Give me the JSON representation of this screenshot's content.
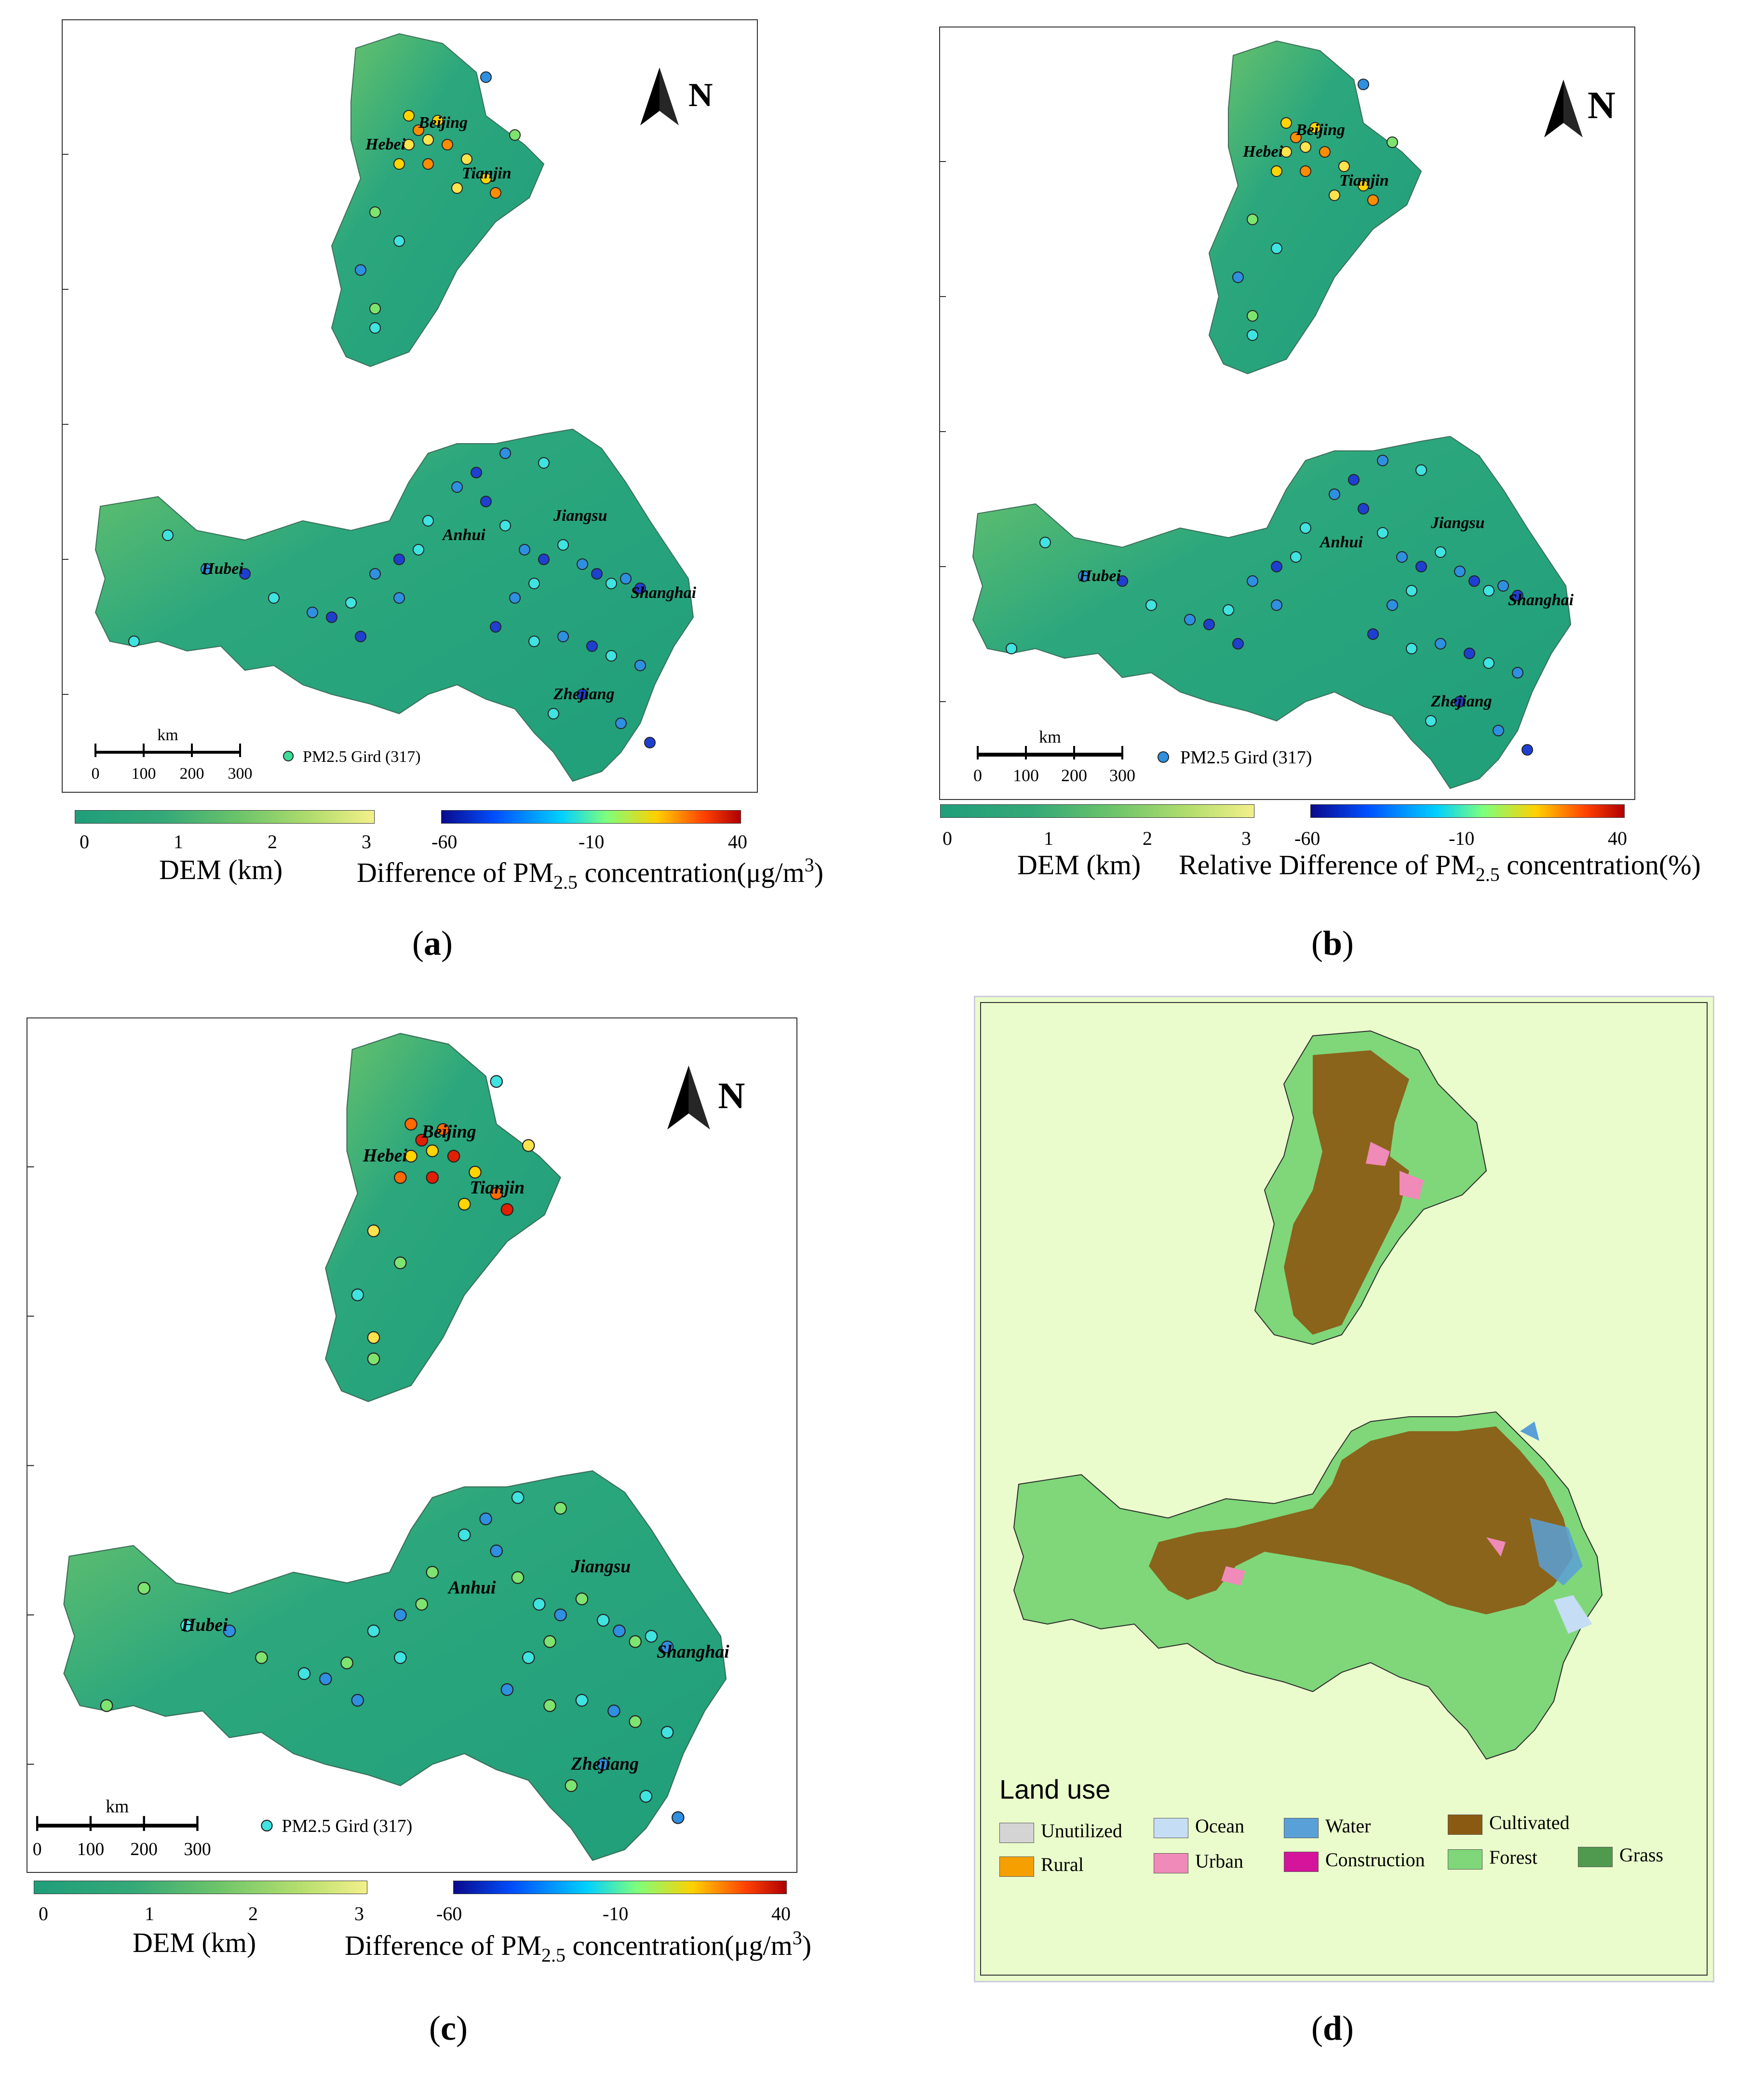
{
  "panels": [
    {
      "id": "a",
      "label": "a",
      "north": "N",
      "legend_text": "PM2.5 Gird (317)",
      "dot_color": "#3ddc97",
      "dem_title": "DEM (km)",
      "dem_ticks": [
        "0",
        "1",
        "2",
        "3"
      ],
      "diff_title_prefix": "Difference of PM",
      "diff_title_sub": "2.5",
      "diff_title_suffix": " concentration(μg/m",
      "diff_title_sup": "3",
      "diff_title_end": ")",
      "diff_ticks": [
        "-60",
        "-10",
        "40"
      ],
      "scale_unit": "km",
      "scale_ticks": [
        "0",
        "100",
        "200",
        "300"
      ],
      "regions": {
        "hebei": "Hebei",
        "beijing": "Beijing",
        "tianjin": "Tianjin",
        "jiangsu": "Jiangsu",
        "anhui": "Anhui",
        "hubei": "Hubei",
        "shanghai": "Shanghai",
        "zhejiang": "Zhejiang"
      }
    },
    {
      "id": "b",
      "label": "b",
      "north": "N",
      "legend_text": "PM2.5 Gird (317)",
      "dot_color": "#2f8fe0",
      "dem_title": "DEM (km)",
      "dem_ticks": [
        "0",
        "1",
        "2",
        "3"
      ],
      "diff_title_prefix": "Relative Difference of PM",
      "diff_title_sub": "2.5",
      "diff_title_suffix": " concentration(%)",
      "diff_title_sup": "",
      "diff_title_end": "",
      "diff_ticks": [
        "-60",
        "-10",
        "40"
      ],
      "scale_unit": "km",
      "scale_ticks": [
        "0",
        "100",
        "200",
        "300"
      ],
      "regions": {
        "hebei": "Hebei",
        "beijing": "Beijing",
        "tianjin": "Tianjin",
        "jiangsu": "Jiangsu",
        "anhui": "Anhui",
        "hubei": "Hubei",
        "shanghai": "Shanghai",
        "zhejiang": "Zhejiang"
      }
    },
    {
      "id": "c",
      "label": "c",
      "north": "N",
      "legend_text": "PM2.5 Gird (317)",
      "dot_color": "#3fe3e0",
      "dem_title": "DEM (km)",
      "dem_ticks": [
        "0",
        "1",
        "2",
        "3"
      ],
      "diff_title_prefix": "Difference of PM",
      "diff_title_sub": "2.5",
      "diff_title_suffix": " concentration(μg/m",
      "diff_title_sup": "3",
      "diff_title_end": ")",
      "diff_ticks": [
        "-60",
        "-10",
        "40"
      ],
      "scale_unit": "km",
      "scale_ticks": [
        "0",
        "100",
        "200",
        "300"
      ],
      "regions": {
        "hebei": "Hebei",
        "beijing": "Beijing",
        "tianjin": "Tianjin",
        "jiangsu": "Jiangsu",
        "anhui": "Anhui",
        "hubei": "Hubei",
        "shanghai": "Shanghai",
        "zhejiang": "Zhejiang"
      }
    }
  ],
  "panel_d": {
    "label": "d",
    "legend_title": "Land use",
    "classes": [
      {
        "name": "Unutilized",
        "color": "#d4d4d4"
      },
      {
        "name": "Ocean",
        "color": "#c5ddf5"
      },
      {
        "name": "Water",
        "color": "#5aa0d8"
      },
      {
        "name": "Cultivated",
        "color": "#8b5a12"
      },
      {
        "name": "Rural",
        "color": "#f5a000"
      },
      {
        "name": "Urban",
        "color": "#f08ab8"
      },
      {
        "name": "Construction",
        "color": "#d4149a"
      },
      {
        "name": "Forest",
        "color": "#7fd77a"
      },
      {
        "name": "Grass",
        "color": "#4f9a4f"
      }
    ]
  },
  "colors": {
    "dem_low": "#1f9e7a",
    "dem_mid": "#6cc46a",
    "dem_high": "#f3f08a",
    "frame_bg_d": "#eafccb"
  }
}
